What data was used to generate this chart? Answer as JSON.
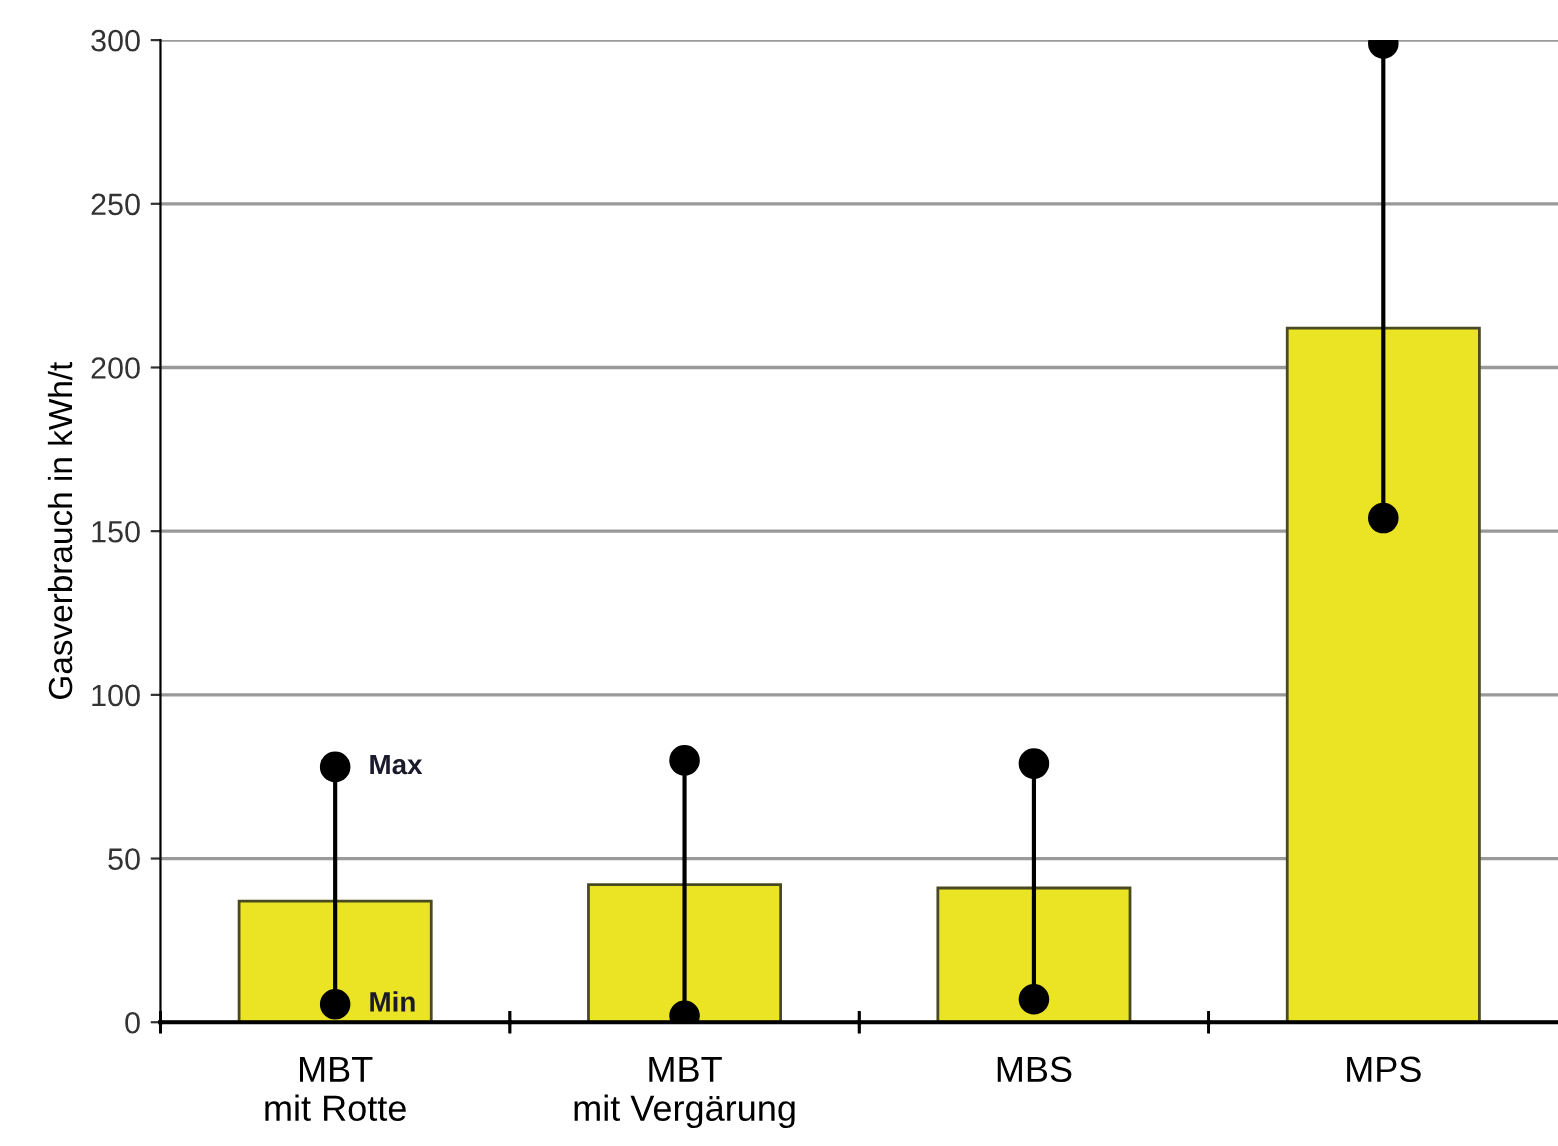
{
  "chart_data": {
    "type": "bar",
    "ylabel": "Gasverbrauch in kWh/t",
    "categories": [
      "MBT\nmit Rotte",
      "MBT\nmit Vergärung",
      "MBS",
      "MPS"
    ],
    "values": [
      37,
      42,
      41,
      212
    ],
    "color": "#ebe424",
    "series": [
      {
        "type": "line",
        "color": "#000000",
        "marker": "circle",
        "x": [
          "MBT\nmit Rotte",
          "MBT\nmit Rotte"
        ],
        "values": [
          5.5,
          78
        ]
      },
      {
        "type": "line",
        "color": "#000000",
        "marker": "circle",
        "x": [
          "MBT\nmit Vergärung",
          "MBT\nmit Vergärung"
        ],
        "values": [
          2,
          80
        ]
      },
      {
        "type": "line",
        "color": "#000000",
        "marker": "circle",
        "x": [
          "MBS",
          "MBS"
        ],
        "values": [
          7,
          79
        ]
      },
      {
        "type": "line",
        "color": "#000000",
        "marker": "circle",
        "x": [
          "MPS",
          "MPS"
        ],
        "values": [
          154,
          299
        ]
      }
    ],
    "ylim": [
      0,
      300
    ],
    "yticks": [
      0,
      50,
      100,
      150,
      200,
      250,
      300
    ],
    "grid": "y",
    "annotations": [
      {
        "text": "Max",
        "x": "MBT\nmit Rotte",
        "y": 78
      },
      {
        "text": "Min",
        "x": "MBT\nmit Rotte",
        "y": 5.5
      }
    ]
  }
}
